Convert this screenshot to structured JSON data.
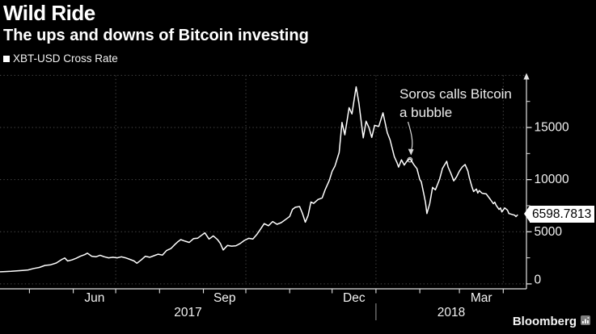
{
  "header": {
    "title": "Wild Ride",
    "subtitle": "The ups and downs of Bitcoin investing"
  },
  "legend": {
    "marker": "square-bullet",
    "label": "XBT-USD Cross Rate"
  },
  "annotation": {
    "line1": "Soros calls Bitcoin",
    "line2": "a bubble",
    "points_to": {
      "date": "2018-01-25",
      "value": 11900
    }
  },
  "callout": {
    "value": "6598.7813"
  },
  "brand": {
    "name": "Bloomberg",
    "icon": "bar-chart-icon"
  },
  "colors": {
    "background": "#000000",
    "text": "#ffffff",
    "series_line": "#ffffff",
    "grid": "#4c4c4c",
    "axis": "#e2e2e2",
    "tick_label": "#f2f2f2",
    "callout_bg": "#ffffff",
    "callout_text": "#000000",
    "year_divider": "#9a9a9a"
  },
  "chart_data": {
    "type": "line",
    "title": "Wild Ride",
    "subtitle": "The ups and downs of Bitcoin investing",
    "ylim": [
      0,
      20000
    ],
    "grid": "dotted",
    "legend_position": "top-left",
    "y_axis_side": "right",
    "ytick_labels": [
      {
        "value": 15000,
        "label": "15000"
      },
      {
        "value": 10000,
        "label": "10000"
      },
      {
        "value": 5000,
        "label": "5000"
      },
      {
        "value": 0,
        "label": "0"
      }
    ],
    "yticks_minor": [
      17500,
      12500,
      7500,
      2500
    ],
    "horizontal_gridline_values": [
      20000,
      15000,
      10000,
      5000,
      0
    ],
    "vertical_gridline_dates": [
      "2017-07-01",
      "2017-10-01",
      "2018-01-01",
      "2018-04-01"
    ],
    "xtick_month_starts": [
      "2017-05-01",
      "2017-06-01",
      "2017-07-01",
      "2017-08-01",
      "2017-09-01",
      "2017-10-01",
      "2017-11-01",
      "2017-12-01",
      "2018-01-01",
      "2018-02-01",
      "2018-03-01",
      "2018-04-01"
    ],
    "xtick_labels": [
      {
        "label": "Jun",
        "between": [
          "2017-06-01",
          "2017-07-01"
        ]
      },
      {
        "label": "Sep",
        "between": [
          "2017-09-01",
          "2017-10-01"
        ]
      },
      {
        "label": "Dec",
        "between": [
          "2017-12-01",
          "2018-01-01"
        ]
      },
      {
        "label": "Mar",
        "between": [
          "2018-03-01",
          "2018-04-01"
        ]
      }
    ],
    "year_labels": [
      "2017",
      "2018"
    ],
    "year_boundary": "2018-01-01",
    "last_value": 6598.7813,
    "series": [
      {
        "name": "XBT-USD Cross Rate",
        "points": [
          [
            "2017-04-10",
            1160
          ],
          [
            "2017-04-14",
            1180
          ],
          [
            "2017-04-18",
            1210
          ],
          [
            "2017-04-22",
            1250
          ],
          [
            "2017-04-26",
            1290
          ],
          [
            "2017-04-30",
            1340
          ],
          [
            "2017-05-04",
            1480
          ],
          [
            "2017-05-08",
            1580
          ],
          [
            "2017-05-12",
            1770
          ],
          [
            "2017-05-16",
            1830
          ],
          [
            "2017-05-20",
            2000
          ],
          [
            "2017-05-24",
            2350
          ],
          [
            "2017-05-26",
            2480
          ],
          [
            "2017-05-28",
            2200
          ],
          [
            "2017-05-31",
            2300
          ],
          [
            "2017-06-03",
            2450
          ],
          [
            "2017-06-06",
            2650
          ],
          [
            "2017-06-09",
            2800
          ],
          [
            "2017-06-11",
            2950
          ],
          [
            "2017-06-14",
            2650
          ],
          [
            "2017-06-17",
            2600
          ],
          [
            "2017-06-20",
            2750
          ],
          [
            "2017-06-23",
            2600
          ],
          [
            "2017-06-26",
            2500
          ],
          [
            "2017-06-29",
            2550
          ],
          [
            "2017-07-02",
            2500
          ],
          [
            "2017-07-05",
            2600
          ],
          [
            "2017-07-08",
            2500
          ],
          [
            "2017-07-11",
            2350
          ],
          [
            "2017-07-14",
            2200
          ],
          [
            "2017-07-16",
            1980
          ],
          [
            "2017-07-19",
            2300
          ],
          [
            "2017-07-22",
            2650
          ],
          [
            "2017-07-25",
            2550
          ],
          [
            "2017-07-28",
            2700
          ],
          [
            "2017-07-31",
            2850
          ],
          [
            "2017-08-03",
            2760
          ],
          [
            "2017-08-06",
            3210
          ],
          [
            "2017-08-09",
            3390
          ],
          [
            "2017-08-12",
            3800
          ],
          [
            "2017-08-14",
            4050
          ],
          [
            "2017-08-16",
            4250
          ],
          [
            "2017-08-19",
            4100
          ],
          [
            "2017-08-22",
            3980
          ],
          [
            "2017-08-25",
            4340
          ],
          [
            "2017-08-28",
            4390
          ],
          [
            "2017-08-31",
            4700
          ],
          [
            "2017-09-02",
            4900
          ],
          [
            "2017-09-05",
            4300
          ],
          [
            "2017-09-08",
            4600
          ],
          [
            "2017-09-11",
            4250
          ],
          [
            "2017-09-13",
            3880
          ],
          [
            "2017-09-15",
            3260
          ],
          [
            "2017-09-18",
            3690
          ],
          [
            "2017-09-21",
            3620
          ],
          [
            "2017-09-24",
            3660
          ],
          [
            "2017-09-27",
            3880
          ],
          [
            "2017-09-30",
            4170
          ],
          [
            "2017-10-03",
            4370
          ],
          [
            "2017-10-06",
            4300
          ],
          [
            "2017-10-09",
            4780
          ],
          [
            "2017-10-12",
            5380
          ],
          [
            "2017-10-14",
            5780
          ],
          [
            "2017-10-17",
            5580
          ],
          [
            "2017-10-20",
            5980
          ],
          [
            "2017-10-23",
            5720
          ],
          [
            "2017-10-26",
            5870
          ],
          [
            "2017-10-29",
            6170
          ],
          [
            "2017-11-01",
            6470
          ],
          [
            "2017-11-03",
            7150
          ],
          [
            "2017-11-05",
            7350
          ],
          [
            "2017-11-08",
            7420
          ],
          [
            "2017-11-10",
            6760
          ],
          [
            "2017-11-12",
            5920
          ],
          [
            "2017-11-14",
            6560
          ],
          [
            "2017-11-16",
            7850
          ],
          [
            "2017-11-18",
            7720
          ],
          [
            "2017-11-21",
            8090
          ],
          [
            "2017-11-24",
            8250
          ],
          [
            "2017-11-26",
            9000
          ],
          [
            "2017-11-29",
            9920
          ],
          [
            "2017-12-01",
            10800
          ],
          [
            "2017-12-03",
            11300
          ],
          [
            "2017-12-06",
            12600
          ],
          [
            "2017-12-08",
            15480
          ],
          [
            "2017-12-10",
            14300
          ],
          [
            "2017-12-13",
            16900
          ],
          [
            "2017-12-15",
            16300
          ],
          [
            "2017-12-18",
            18900
          ],
          [
            "2017-12-20",
            17300
          ],
          [
            "2017-12-23",
            14000
          ],
          [
            "2017-12-25",
            15600
          ],
          [
            "2017-12-27",
            15000
          ],
          [
            "2017-12-29",
            14050
          ],
          [
            "2017-12-31",
            15200
          ],
          [
            "2018-01-03",
            15100
          ],
          [
            "2018-01-06",
            16400
          ],
          [
            "2018-01-09",
            14500
          ],
          [
            "2018-01-11",
            13800
          ],
          [
            "2018-01-14",
            12200
          ],
          [
            "2018-01-16",
            11600
          ],
          [
            "2018-01-17",
            11200
          ],
          [
            "2018-01-19",
            11900
          ],
          [
            "2018-01-21",
            11400
          ],
          [
            "2018-01-23",
            11800
          ],
          [
            "2018-01-25",
            12000
          ],
          [
            "2018-01-26",
            11840
          ],
          [
            "2018-01-28",
            11400
          ],
          [
            "2018-01-30",
            11050
          ],
          [
            "2018-02-01",
            10000
          ],
          [
            "2018-02-02",
            9800
          ],
          [
            "2018-02-04",
            8500
          ],
          [
            "2018-02-05",
            7840
          ],
          [
            "2018-02-06",
            6750
          ],
          [
            "2018-02-08",
            7700
          ],
          [
            "2018-02-10",
            9250
          ],
          [
            "2018-02-12",
            9020
          ],
          [
            "2018-02-15",
            10040
          ],
          [
            "2018-02-17",
            11060
          ],
          [
            "2018-02-20",
            11760
          ],
          [
            "2018-02-21",
            11210
          ],
          [
            "2018-02-23",
            10590
          ],
          [
            "2018-02-25",
            9880
          ],
          [
            "2018-02-27",
            10270
          ],
          [
            "2018-03-01",
            10820
          ],
          [
            "2018-03-03",
            11210
          ],
          [
            "2018-03-05",
            11450
          ],
          [
            "2018-03-07",
            10820
          ],
          [
            "2018-03-08",
            10200
          ],
          [
            "2018-03-10",
            9250
          ],
          [
            "2018-03-11",
            8860
          ],
          [
            "2018-03-13",
            9100
          ],
          [
            "2018-03-14",
            8710
          ],
          [
            "2018-03-15",
            8950
          ],
          [
            "2018-03-17",
            8700
          ],
          [
            "2018-03-20",
            8630
          ],
          [
            "2018-03-23",
            8080
          ],
          [
            "2018-03-25",
            7690
          ],
          [
            "2018-03-26",
            7840
          ],
          [
            "2018-03-27",
            7530
          ],
          [
            "2018-03-29",
            7140
          ],
          [
            "2018-03-30",
            7290
          ],
          [
            "2018-03-31",
            6900
          ],
          [
            "2018-04-02",
            7290
          ],
          [
            "2018-04-04",
            7060
          ],
          [
            "2018-04-05",
            6750
          ],
          [
            "2018-04-07",
            6670
          ],
          [
            "2018-04-09",
            6590
          ],
          [
            "2018-04-10",
            6460
          ],
          [
            "2018-04-11",
            6598.7813
          ]
        ]
      }
    ]
  }
}
